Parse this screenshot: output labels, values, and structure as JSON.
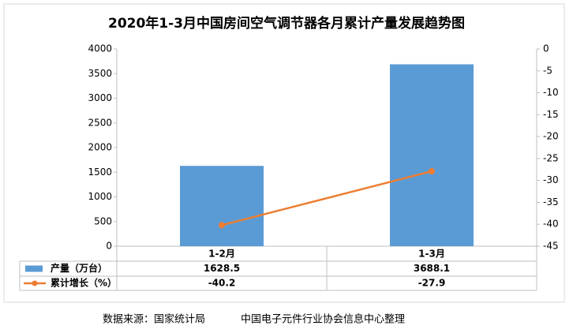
{
  "chart_data": {
    "type": "bar",
    "title": "2020年1-3月中国房间空气调节器各月累计产量发展趋势图",
    "categories": [
      "1-2月",
      "1-3月"
    ],
    "series": [
      {
        "name": "产量（万台）",
        "type": "bar",
        "color": "#5b9bd5",
        "values": [
          1628.5,
          3688.1
        ]
      },
      {
        "name": "累计增长（%）",
        "type": "line",
        "color": "#ed7d31",
        "axis": "y2",
        "values": [
          -40.2,
          -27.9
        ]
      }
    ],
    "ylim": [
      0,
      4000
    ],
    "yticks": [
      0,
      500,
      1000,
      1500,
      2000,
      2500,
      3000,
      3500,
      4000
    ],
    "y2lim": [
      -45,
      0
    ],
    "y2ticks": [
      0,
      -5,
      -10,
      -15,
      -20,
      -25,
      -30,
      -35,
      -40,
      -45
    ],
    "source": "数据来源：国家统计局",
    "credit": "中国电子元件行业协会信息中心整理"
  }
}
